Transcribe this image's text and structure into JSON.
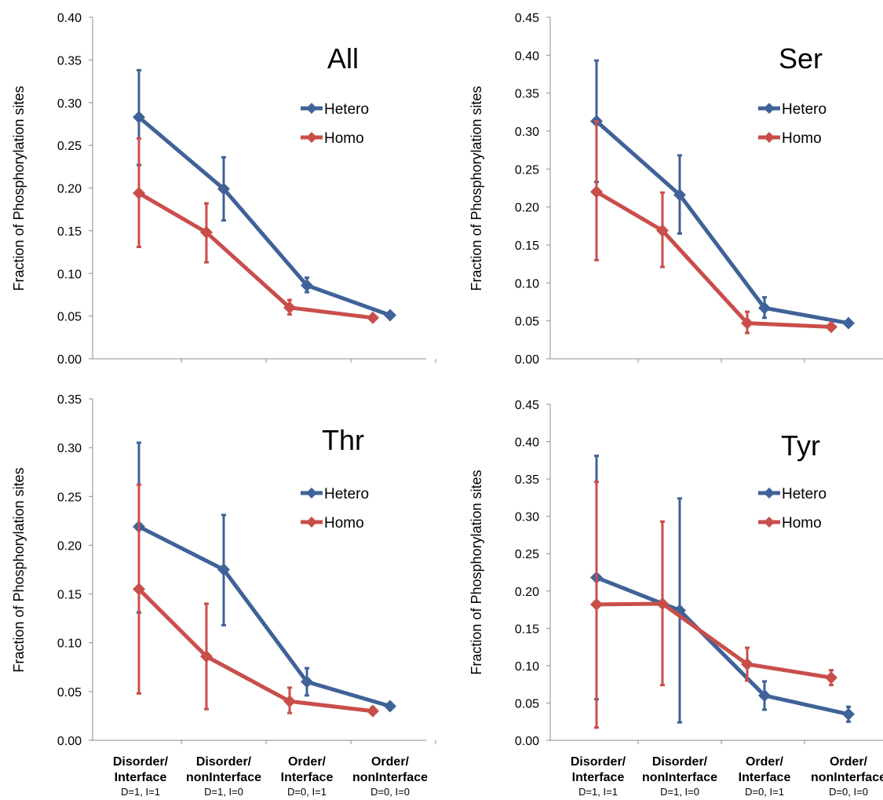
{
  "chart_data": [
    {
      "type": "line",
      "title": "All",
      "ylabel": "Fraction of Phosphorylation sites",
      "ylim": [
        0,
        0.4
      ],
      "yticks": [
        "0.00",
        "0.05",
        "0.10",
        "0.15",
        "0.20",
        "0.25",
        "0.30",
        "0.35",
        "0.40"
      ],
      "categories": [
        {
          "line1": "Disorder/",
          "line2": "Interface",
          "line3": "D=1, I=1"
        },
        {
          "line1": "Disorder/",
          "line2": "nonInterface",
          "line3": "D=1, I=0"
        },
        {
          "line1": "Order/",
          "line2": "Interface",
          "line3": "D=0, I=1"
        },
        {
          "line1": "Order/",
          "line2": "nonInterface",
          "line3": "D=0, I=0"
        }
      ],
      "series": [
        {
          "name": "Hetero",
          "color": "#3F6298",
          "values": [
            0.283,
            0.199,
            0.086,
            0.051
          ],
          "err_low": [
            0.227,
            0.162,
            0.078,
            0.05
          ],
          "err_high": [
            0.338,
            0.236,
            0.095,
            0.053
          ]
        },
        {
          "name": "Homo",
          "color": "#C94E4B",
          "values": [
            0.194,
            0.148,
            0.06,
            0.048
          ],
          "err_low": [
            0.131,
            0.113,
            0.052,
            0.046
          ],
          "err_high": [
            0.258,
            0.182,
            0.069,
            0.05
          ]
        }
      ],
      "legend": "right",
      "grid": false
    },
    {
      "type": "line",
      "title": "Ser",
      "ylabel": "Fraction of Phosphorylation sites",
      "ylim": [
        0,
        0.45
      ],
      "yticks": [
        "0.00",
        "0.05",
        "0.10",
        "0.15",
        "0.20",
        "0.25",
        "0.30",
        "0.35",
        "0.40",
        "0.45"
      ],
      "categories": [
        {
          "line1": "Disorder/",
          "line2": "Interface",
          "line3": "D=1, I=1"
        },
        {
          "line1": "Disorder/",
          "line2": "nonInterface",
          "line3": "D=1, I=0"
        },
        {
          "line1": "Order/",
          "line2": "Interface",
          "line3": "D=0, I=1"
        },
        {
          "line1": "Order/",
          "line2": "nonInterface",
          "line3": "D=0, I=0"
        }
      ],
      "series": [
        {
          "name": "Hetero",
          "color": "#3F6298",
          "values": [
            0.313,
            0.216,
            0.067,
            0.047
          ],
          "err_low": [
            0.233,
            0.165,
            0.054,
            0.045
          ],
          "err_high": [
            0.393,
            0.268,
            0.081,
            0.05
          ]
        },
        {
          "name": "Homo",
          "color": "#C94E4B",
          "values": [
            0.22,
            0.169,
            0.047,
            0.042
          ],
          "err_low": [
            0.13,
            0.121,
            0.034,
            0.04
          ],
          "err_high": [
            0.313,
            0.219,
            0.062,
            0.044
          ]
        }
      ],
      "legend": "right",
      "grid": false
    },
    {
      "type": "line",
      "title": "Thr",
      "ylabel": "Fraction of Phosphorylation sites",
      "ylim": [
        0,
        0.35
      ],
      "yticks": [
        "0.00",
        "0.05",
        "0.10",
        "0.15",
        "0.20",
        "0.25",
        "0.30",
        "0.35"
      ],
      "categories": [
        {
          "line1": "Disorder/",
          "line2": "Interface",
          "line3": "D=1, I=1"
        },
        {
          "line1": "Disorder/",
          "line2": "nonInterface",
          "line3": "D=1, I=0"
        },
        {
          "line1": "Order/",
          "line2": "Interface",
          "line3": "D=0, I=1"
        },
        {
          "line1": "Order/",
          "line2": "nonInterface",
          "line3": "D=0, I=0"
        }
      ],
      "series": [
        {
          "name": "Hetero",
          "color": "#3F6298",
          "values": [
            0.219,
            0.175,
            0.06,
            0.035
          ],
          "err_low": [
            0.131,
            0.118,
            0.046,
            0.032
          ],
          "err_high": [
            0.305,
            0.231,
            0.074,
            0.038
          ]
        },
        {
          "name": "Homo",
          "color": "#C94E4B",
          "values": [
            0.155,
            0.086,
            0.04,
            0.03
          ],
          "err_low": [
            0.048,
            0.032,
            0.028,
            0.027
          ],
          "err_high": [
            0.262,
            0.14,
            0.054,
            0.034
          ]
        }
      ],
      "legend": "right",
      "grid": false
    },
    {
      "type": "line",
      "title": "Tyr",
      "ylabel": "Fraction of Phosphorylation sites",
      "ylim": [
        0,
        0.45
      ],
      "yticks": [
        "0.00",
        "0.05",
        "0.10",
        "0.15",
        "0.20",
        "0.25",
        "0.30",
        "0.35",
        "0.40",
        "0.45"
      ],
      "categories": [
        {
          "line1": "Disorder/",
          "line2": "Interface",
          "line3": "D=1, I=1"
        },
        {
          "line1": "Disorder/",
          "line2": "nonInterface",
          "line3": "D=1, I=0"
        },
        {
          "line1": "Order/",
          "line2": "Interface",
          "line3": "D=0, I=1"
        },
        {
          "line1": "Order/",
          "line2": "nonInterface",
          "line3": "D=0, I=0"
        }
      ],
      "series": [
        {
          "name": "Hetero",
          "color": "#3F6298",
          "values": [
            0.218,
            0.174,
            0.06,
            0.035
          ],
          "err_low": [
            0.055,
            0.024,
            0.041,
            0.025
          ],
          "err_high": [
            0.381,
            0.324,
            0.079,
            0.045
          ]
        },
        {
          "name": "Homo",
          "color": "#C94E4B",
          "values": [
            0.182,
            0.183,
            0.102,
            0.084
          ],
          "err_low": [
            0.017,
            0.074,
            0.08,
            0.074
          ],
          "err_high": [
            0.346,
            0.293,
            0.124,
            0.094
          ]
        }
      ],
      "legend": "right",
      "grid": false
    }
  ]
}
